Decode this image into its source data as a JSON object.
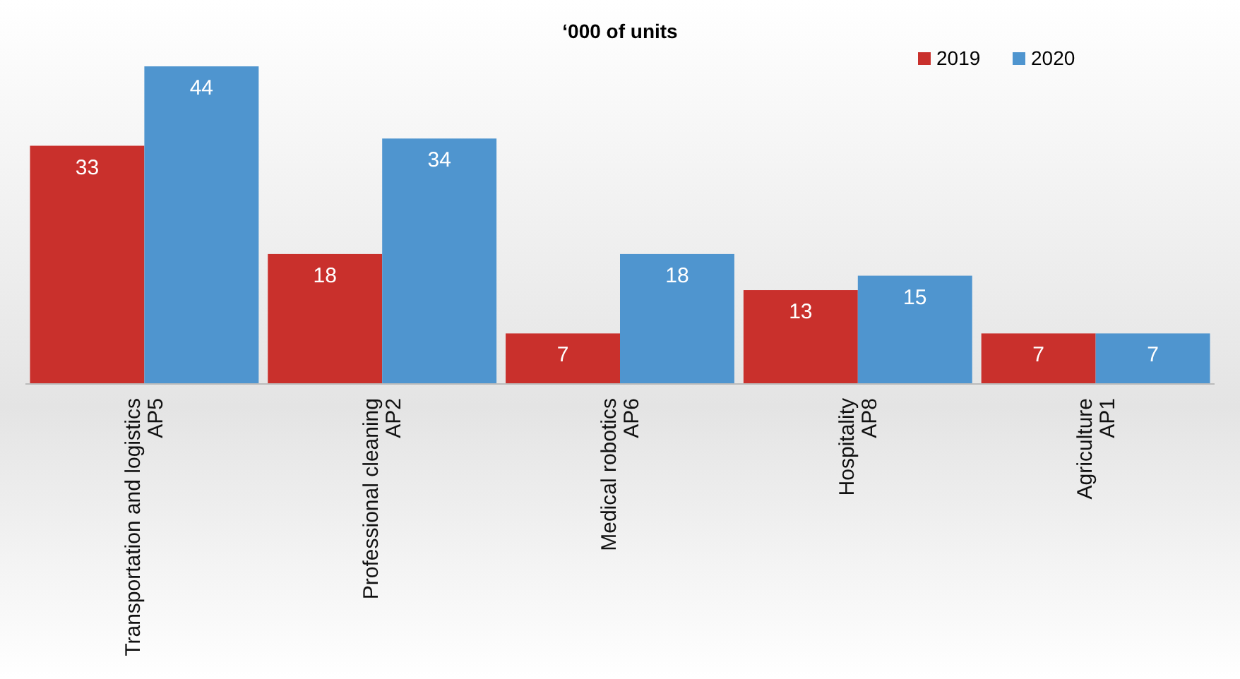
{
  "chart_data": {
    "type": "bar",
    "title": "‘000 of units",
    "categories": [
      "Transportation and logistics\nAP5",
      "Professional cleaning\nAP2",
      "Medical robotics\nAP6",
      "Hospitality\nAP8",
      "Agriculture\nAP1"
    ],
    "series": [
      {
        "name": "2019",
        "color": "#c9302c",
        "values": [
          33,
          18,
          7,
          13,
          7
        ]
      },
      {
        "name": "2020",
        "color": "#4f95cf",
        "values": [
          44,
          34,
          18,
          15,
          7
        ]
      }
    ],
    "data_labels": true,
    "legend": "top right",
    "grid": false
  }
}
